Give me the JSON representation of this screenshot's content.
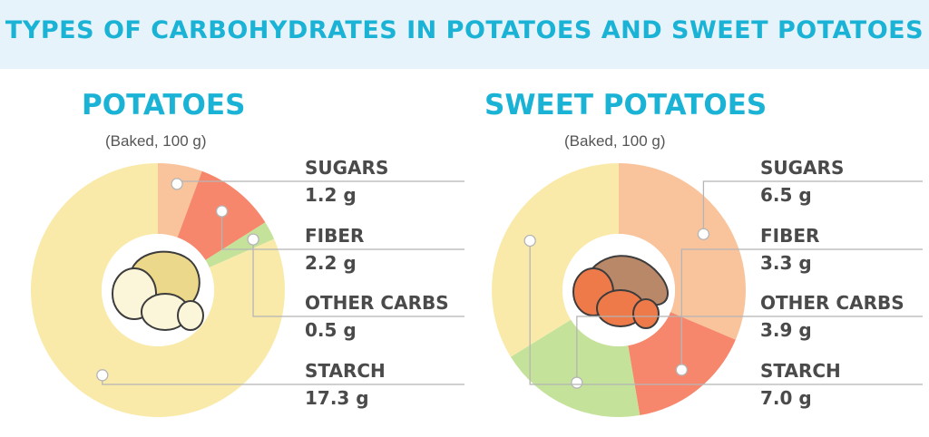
{
  "header": {
    "title": "TYPES OF CARBOHYDRATES IN POTATOES AND SWEET POTATOES"
  },
  "chart_data": [
    {
      "type": "pie",
      "title": "POTATOES",
      "subtitle": "(Baked, 100 g)",
      "categories": [
        "SUGARS",
        "FIBER",
        "OTHER CARBS",
        "STARCH"
      ],
      "values": [
        1.2,
        2.2,
        0.5,
        17.3
      ],
      "value_labels": [
        "1.2 g",
        "2.2 g",
        "0.5 g",
        "17.3 g"
      ],
      "colors": [
        "#f9c49c",
        "#f7876c",
        "#c5e29a",
        "#faeaaa"
      ],
      "center_icon": "potato-icon"
    },
    {
      "type": "pie",
      "title": "SWEET POTATOES",
      "subtitle": "(Baked, 100 g)",
      "categories": [
        "SUGARS",
        "FIBER",
        "OTHER CARBS",
        "STARCH"
      ],
      "values": [
        6.5,
        3.3,
        3.9,
        7.0
      ],
      "value_labels": [
        "6.5 g",
        "3.3 g",
        "3.9 g",
        "7.0 g"
      ],
      "colors": [
        "#f9c49c",
        "#f7876c",
        "#c5e29a",
        "#faeaaa"
      ],
      "center_icon": "sweet-potato-icon"
    }
  ]
}
